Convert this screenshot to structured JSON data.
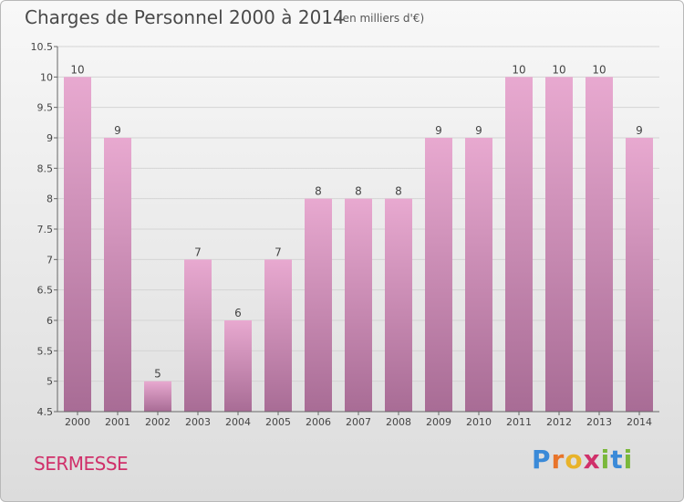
{
  "chart_data": {
    "type": "bar",
    "title": "Charges de Personnel 2000 à 2014",
    "subtitle": "(en milliers d'€)",
    "categories": [
      "2000",
      "2001",
      "2002",
      "2003",
      "2004",
      "2005",
      "2006",
      "2007",
      "2008",
      "2009",
      "2010",
      "2011",
      "2012",
      "2013",
      "2014"
    ],
    "values": [
      10,
      9,
      5,
      7,
      6,
      7,
      8,
      8,
      8,
      9,
      9,
      10,
      10,
      10,
      9
    ],
    "ylim": [
      4.5,
      10.5
    ],
    "yticks": [
      "4.5",
      "5",
      "5.5",
      "6",
      "6.5",
      "7",
      "7.5",
      "8",
      "8.5",
      "9",
      "9.5",
      "10",
      "10.5"
    ],
    "grid": true,
    "bar_color_top": "#e8a9d0",
    "bar_color_bottom": "#a86c95"
  },
  "commune": "SERMESSE",
  "brand": {
    "letters": [
      "P",
      "r",
      "o",
      "x",
      "i",
      "t",
      "i"
    ],
    "colors": [
      "#3a8ad8",
      "#e8742a",
      "#e8b32a",
      "#d0306a",
      "#7ab83a",
      "#3a8ad8",
      "#7ab83a"
    ]
  }
}
